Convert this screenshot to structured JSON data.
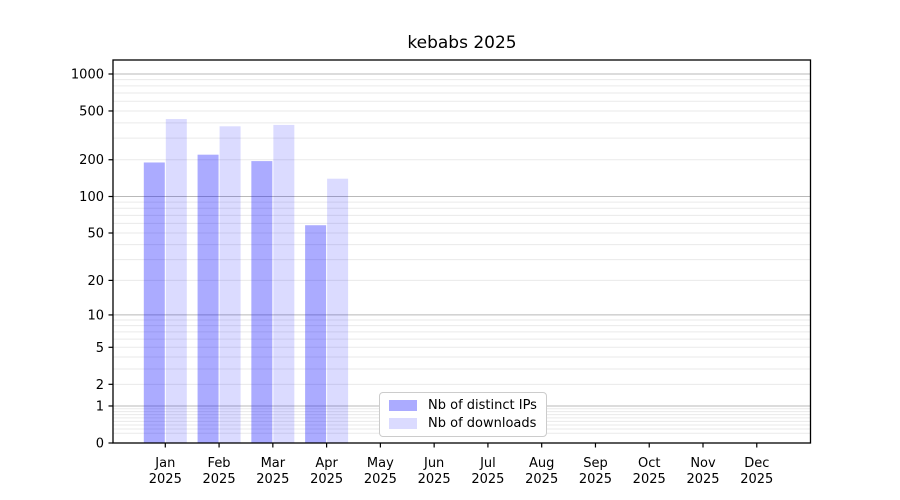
{
  "chart_data": {
    "type": "bar",
    "title": "kebabs 2025",
    "year": "2025",
    "categories": [
      "Jan",
      "Feb",
      "Mar",
      "Apr",
      "May",
      "Jun",
      "Jul",
      "Aug",
      "Sep",
      "Oct",
      "Nov",
      "Dec"
    ],
    "series": [
      {
        "name": "Nb of distinct IPs",
        "color": "rgba(0,0,255,0.33)",
        "values": [
          190,
          220,
          195,
          58,
          null,
          null,
          null,
          null,
          null,
          null,
          null,
          null
        ]
      },
      {
        "name": "Nb of downloads",
        "color": "rgba(0,0,255,0.14)",
        "values": [
          430,
          375,
          385,
          140,
          null,
          null,
          null,
          null,
          null,
          null,
          null,
          null
        ]
      }
    ],
    "yscale": "log1p",
    "ylim": [
      0,
      1300
    ],
    "y_ticks": [
      0,
      1,
      2,
      5,
      10,
      20,
      50,
      100,
      200,
      500,
      1000
    ],
    "grid": {
      "major_color": "#b9b9b9",
      "minor_color": "#eaeaea",
      "major_values": [
        1,
        10,
        100,
        1000
      ]
    },
    "axis_color": "#000000",
    "legend_position": "lower center"
  }
}
